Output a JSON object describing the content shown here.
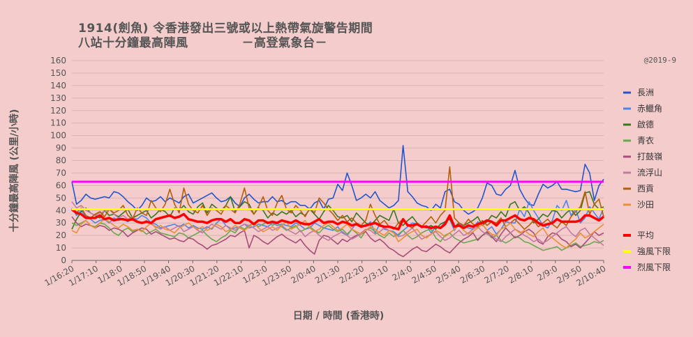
{
  "title_line1": "1914(劍魚) 令香港發出三號或以上熱帶氣旋警告期間",
  "title_line2": "八站十分鐘最高陣風            －高登氣象台－",
  "credit": "@2019-9",
  "chart_data": {
    "type": "line",
    "xlabel": "日期 / 時間 (香港時)",
    "ylabel": "十分鐘最高陣風 (公里/小時)",
    "ylim": [
      0,
      160
    ],
    "yticks": [
      0,
      10,
      20,
      30,
      40,
      50,
      60,
      70,
      80,
      90,
      100,
      110,
      120,
      130,
      140,
      150,
      160
    ],
    "grid": true,
    "legend_position": "right",
    "x_tick_labels": [
      "1/16:20",
      "1/17:10",
      "1/18:0",
      "1/18:50",
      "1/19:40",
      "1/20:30",
      "1/21:20",
      "1/22:10",
      "1/23:0",
      "1/23:50",
      "2/0:40",
      "2/1:30",
      "2/2:20",
      "2/3:10",
      "2/4:0",
      "2/4:50",
      "2/5:40",
      "2/6:30",
      "2/7:20",
      "2/8:10",
      "2/9:0",
      "2/9:50",
      "2/10:40"
    ],
    "point_count": 115,
    "thresholds": [
      {
        "name": "強風下限",
        "value": 41,
        "color": "#ffff00"
      },
      {
        "name": "烈風下限",
        "value": 63,
        "color": "#ff00ff"
      }
    ],
    "series": [
      {
        "name": "長洲",
        "color": "#2255cc",
        "values": [
          63,
          45,
          48,
          53,
          50,
          49,
          50,
          51,
          50,
          55,
          54,
          51,
          47,
          44,
          40,
          44,
          50,
          47,
          48,
          51,
          47,
          50,
          48,
          46,
          51,
          53,
          46,
          48,
          50,
          52,
          54,
          50,
          47,
          48,
          51,
          46,
          43,
          50,
          53,
          49,
          46,
          47,
          47,
          51,
          47,
          48,
          45,
          47,
          47,
          44,
          44,
          41,
          46,
          48,
          41,
          49,
          50,
          61,
          56,
          70,
          60,
          48,
          50,
          53,
          50,
          55,
          48,
          45,
          42,
          44,
          48,
          92,
          55,
          51,
          46,
          44,
          43,
          40,
          45,
          42,
          55,
          57,
          47,
          45,
          40,
          37,
          39,
          42,
          50,
          62,
          60,
          53,
          52,
          57,
          60,
          72,
          57,
          50,
          45,
          44,
          53,
          61,
          58,
          60,
          63,
          57,
          57,
          56,
          55,
          56,
          77,
          70,
          48,
          60,
          65
        ]
      },
      {
        "name": "赤鱲角",
        "color": "#4a86e8",
        "values": [
          42,
          36,
          40,
          35,
          33,
          30,
          32,
          33,
          30,
          34,
          32,
          33,
          31,
          34,
          33,
          36,
          34,
          30,
          29,
          26,
          27,
          28,
          29,
          27,
          29,
          26,
          28,
          26,
          25,
          27,
          25,
          30,
          33,
          28,
          25,
          26,
          27,
          29,
          26,
          27,
          29,
          28,
          27,
          30,
          28,
          29,
          28,
          27,
          30,
          28,
          25,
          26,
          30,
          28,
          26,
          25,
          24,
          27,
          22,
          20,
          25,
          30,
          28,
          27,
          31,
          22,
          29,
          25,
          24,
          23,
          20,
          24,
          27,
          30,
          29,
          26,
          28,
          22,
          27,
          26,
          31,
          33,
          24,
          30,
          27,
          26,
          25,
          31,
          29,
          24,
          27,
          21,
          25,
          31,
          30,
          30,
          41,
          35,
          47,
          40,
          34,
          28,
          26,
          32,
          44,
          40,
          48,
          36,
          41,
          30,
          34,
          43,
          38,
          33,
          42
        ]
      },
      {
        "name": "啟德",
        "color": "#38761d",
        "values": [
          25,
          33,
          39,
          42,
          38,
          36,
          34,
          40,
          36,
          37,
          35,
          38,
          41,
          34,
          36,
          38,
          40,
          34,
          37,
          41,
          39,
          35,
          42,
          40,
          44,
          39,
          37,
          43,
          46,
          38,
          45,
          42,
          40,
          44,
          51,
          39,
          43,
          47,
          45,
          37,
          42,
          40,
          34,
          38,
          36,
          39,
          37,
          40,
          35,
          38,
          36,
          41,
          37,
          33,
          39,
          44,
          40,
          35,
          34,
          36,
          31,
          38,
          34,
          30,
          28,
          32,
          36,
          34,
          32,
          41,
          30,
          28,
          32,
          35,
          30,
          27,
          26,
          28,
          25,
          29,
          31,
          33,
          27,
          30,
          28,
          30,
          32,
          35,
          28,
          31,
          36,
          34,
          39,
          35,
          45,
          47,
          40,
          43,
          38,
          30,
          33,
          37,
          35,
          40,
          39,
          34,
          38,
          41,
          36,
          40,
          54,
          55,
          45,
          41,
          43
        ]
      },
      {
        "name": "青衣",
        "color": "#6aa84f",
        "values": [
          30,
          28,
          30,
          32,
          28,
          27,
          30,
          29,
          26,
          22,
          20,
          24,
          26,
          23,
          25,
          24,
          21,
          23,
          25,
          22,
          21,
          20,
          19,
          22,
          21,
          18,
          20,
          22,
          24,
          20,
          17,
          15,
          18,
          20,
          24,
          22,
          27,
          25,
          28,
          30,
          27,
          29,
          31,
          28,
          30,
          27,
          24,
          26,
          28,
          23,
          25,
          27,
          24,
          22,
          26,
          28,
          25,
          23,
          25,
          21,
          25,
          22,
          18,
          24,
          26,
          23,
          20,
          18,
          22,
          19,
          21,
          24,
          20,
          17,
          19,
          22,
          24,
          25,
          18,
          15,
          20,
          22,
          18,
          16,
          14,
          15,
          16,
          17,
          20,
          22,
          18,
          20,
          16,
          14,
          16,
          19,
          18,
          15,
          14,
          12,
          10,
          8,
          9,
          10,
          11,
          8,
          10,
          12,
          14,
          11,
          12,
          13,
          15,
          14,
          16
        ]
      },
      {
        "name": "打鼓嶺",
        "color": "#a64d79",
        "values": [
          35,
          30,
          27,
          29,
          28,
          26,
          28,
          27,
          24,
          26,
          25,
          23,
          19,
          22,
          24,
          26,
          25,
          21,
          23,
          21,
          19,
          17,
          18,
          16,
          15,
          18,
          17,
          14,
          12,
          9,
          12,
          13,
          15,
          17,
          20,
          19,
          22,
          24,
          10,
          20,
          18,
          15,
          13,
          16,
          19,
          21,
          18,
          16,
          14,
          17,
          12,
          8,
          5,
          16,
          20,
          19,
          16,
          13,
          17,
          15,
          18,
          20,
          21,
          23,
          18,
          15,
          17,
          14,
          10,
          8,
          5,
          3,
          6,
          9,
          11,
          8,
          7,
          10,
          13,
          11,
          8,
          6,
          10,
          14,
          17,
          19,
          22,
          16,
          20,
          23,
          19,
          15,
          21,
          26,
          22,
          18,
          20,
          23,
          25,
          22,
          15,
          13,
          19,
          22,
          21,
          17,
          15,
          11,
          13,
          10,
          14,
          18,
          23,
          20,
          22
        ]
      },
      {
        "name": "流浮山",
        "color": "#c27ba0",
        "values": [
          47,
          42,
          44,
          40,
          38,
          36,
          38,
          39,
          41,
          37,
          34,
          36,
          33,
          35,
          31,
          30,
          32,
          29,
          27,
          25,
          27,
          24,
          26,
          28,
          23,
          25,
          27,
          24,
          22,
          26,
          29,
          27,
          25,
          28,
          26,
          24,
          27,
          29,
          28,
          26,
          23,
          25,
          27,
          24,
          26,
          28,
          25,
          23,
          21,
          24,
          19,
          22,
          24,
          20,
          18,
          16,
          19,
          21,
          23,
          20,
          17,
          19,
          22,
          25,
          24,
          21,
          23,
          26,
          24,
          22,
          19,
          20,
          23,
          26,
          21,
          17,
          19,
          21,
          23,
          19,
          16,
          18,
          21,
          24,
          20,
          22,
          25,
          27,
          23,
          21,
          20,
          17,
          15,
          19,
          22,
          25,
          23,
          20,
          18,
          15,
          17,
          14,
          16,
          19,
          22,
          25,
          27,
          22,
          19,
          24,
          26,
          21,
          18,
          15,
          12
        ]
      },
      {
        "name": "西貢",
        "color": "#b45f06",
        "values": [
          40,
          38,
          42,
          36,
          34,
          37,
          39,
          35,
          41,
          38,
          40,
          44,
          36,
          33,
          42,
          38,
          36,
          48,
          42,
          39,
          45,
          57,
          45,
          38,
          58,
          45,
          40,
          38,
          44,
          36,
          42,
          40,
          37,
          44,
          41,
          38,
          45,
          58,
          42,
          37,
          43,
          51,
          40,
          36,
          46,
          52,
          41,
          38,
          44,
          40,
          35,
          42,
          38,
          50,
          46,
          41,
          37,
          32,
          36,
          31,
          34,
          30,
          28,
          32,
          45,
          36,
          29,
          32,
          27,
          25,
          30,
          33,
          28,
          26,
          30,
          27,
          31,
          35,
          30,
          36,
          40,
          75,
          34,
          30,
          28,
          33,
          29,
          27,
          32,
          28,
          31,
          30,
          34,
          27,
          30,
          33,
          29,
          25,
          28,
          32,
          27,
          30,
          33,
          29,
          26,
          31,
          28,
          35,
          39,
          43,
          55,
          37,
          45,
          49,
          35
        ]
      },
      {
        "name": "沙田",
        "color": "#e69138",
        "values": [
          24,
          22,
          29,
          32,
          28,
          26,
          30,
          33,
          31,
          28,
          26,
          29,
          27,
          24,
          25,
          23,
          27,
          30,
          26,
          28,
          25,
          24,
          22,
          26,
          28,
          30,
          27,
          25,
          27,
          24,
          26,
          29,
          27,
          23,
          25,
          28,
          26,
          24,
          27,
          30,
          26,
          23,
          25,
          27,
          24,
          28,
          31,
          25,
          27,
          29,
          32,
          26,
          23,
          25,
          28,
          30,
          27,
          24,
          26,
          29,
          25,
          23,
          21,
          24,
          27,
          25,
          22,
          20,
          24,
          22,
          15,
          18,
          21,
          23,
          25,
          20,
          18,
          21,
          24,
          22,
          19,
          22,
          25,
          28,
          24,
          21,
          23,
          26,
          29,
          24,
          21,
          20,
          25,
          27,
          30,
          25,
          22,
          24,
          21,
          19,
          23,
          26,
          20,
          18,
          15,
          12,
          10,
          14,
          17,
          22,
          18,
          20,
          23,
          26,
          29
        ]
      },
      {
        "name": "平均",
        "color": "#ff0000",
        "values": [
          41,
          38,
          37,
          34,
          34,
          34,
          36,
          33,
          34,
          32,
          33,
          33,
          32,
          33,
          31,
          30,
          31,
          30,
          33,
          34,
          35,
          36,
          34,
          35,
          37,
          33,
          32,
          31,
          31,
          30,
          32,
          33,
          33,
          31,
          33,
          30,
          30,
          33,
          32,
          29,
          32,
          32,
          30,
          31,
          30,
          32,
          31,
          30,
          32,
          30,
          29,
          29,
          31,
          33,
          30,
          31,
          31,
          29,
          31,
          30,
          28,
          29,
          27,
          28,
          29,
          30,
          28,
          27,
          27,
          26,
          25,
          33,
          28,
          28,
          29,
          27,
          27,
          26,
          27,
          26,
          29,
          36,
          27,
          28,
          26,
          28,
          27,
          29,
          30,
          32,
          31,
          28,
          32,
          32,
          34,
          36,
          33,
          32,
          34,
          33,
          30,
          28,
          29,
          30,
          33,
          31,
          31,
          31,
          31,
          32,
          36,
          36,
          34,
          32,
          35
        ]
      }
    ]
  }
}
